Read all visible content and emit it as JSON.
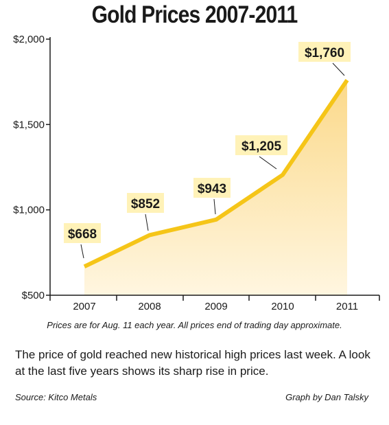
{
  "chart_data": {
    "type": "area",
    "title": "Gold Prices 2007-2011",
    "categories": [
      "2007",
      "2008",
      "2009",
      "2010",
      "2011"
    ],
    "values": [
      668,
      852,
      943,
      1205,
      1760
    ],
    "data_labels": [
      "$668",
      "$852",
      "$943",
      "$1,205",
      "$1,760"
    ],
    "yticks": [
      500,
      1000,
      1500,
      2000
    ],
    "ytick_labels": [
      "$500",
      "$1,000",
      "$1,500",
      "$2,000"
    ],
    "ylim": [
      500,
      2000
    ],
    "grid": false,
    "colors": {
      "line": "#f5c518",
      "fill_top": "#fbd98a",
      "fill_bottom": "#fff6e0",
      "label_bg": "#fff2b8",
      "axis": "#1a1a1a"
    }
  },
  "note": "Prices are for Aug. 11 each year. All prices end of trading day approximate.",
  "description": "The price of gold reached new historical high prices last week. A look at the last five years shows its sharp rise in price.",
  "source": "Source: Kitco Metals",
  "credit": "Graph by Dan Talsky"
}
